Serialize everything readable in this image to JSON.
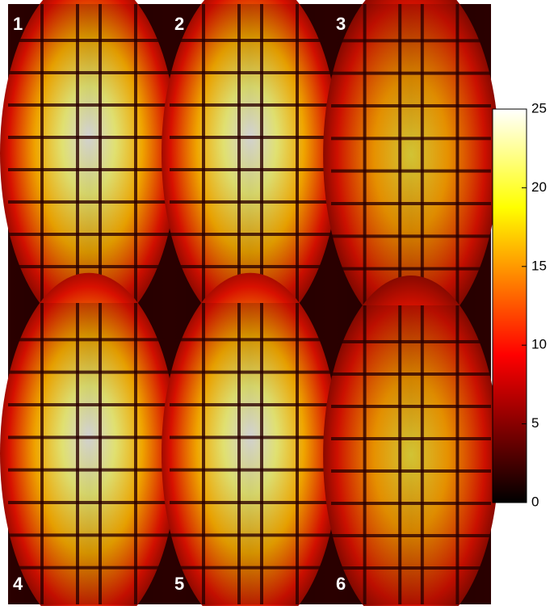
{
  "panels": [
    {
      "label": "1"
    },
    {
      "label": "2"
    },
    {
      "label": "3"
    },
    {
      "label": "4"
    },
    {
      "label": "5"
    },
    {
      "label": "6"
    }
  ],
  "colorbar": {
    "lim": [
      0,
      25
    ],
    "ticks": [
      0,
      5,
      10,
      15,
      20,
      25
    ],
    "colormap": "hot"
  }
}
